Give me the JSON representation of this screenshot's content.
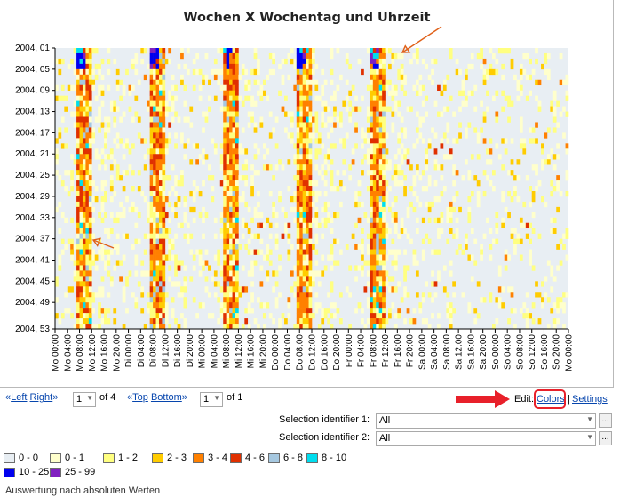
{
  "chart_data": {
    "type": "heatmap",
    "title": "Wochen X Wochentag und Uhrzeit",
    "ylabel": "",
    "xlabel": "",
    "y_tick_labels": [
      "2004, 01",
      "2004, 05",
      "2004, 09",
      "2004, 13",
      "2004, 17",
      "2004, 21",
      "2004, 25",
      "2004, 29",
      "2004, 33",
      "2004, 37",
      "2004, 41",
      "2004, 45",
      "2004, 49",
      "2004, 53"
    ],
    "x_tick_labels": [
      "Mo 00:00",
      "Mo 04:00",
      "Mo 08:00",
      "Mo 12:00",
      "Mo 16:00",
      "Mo 20:00",
      "Di 00:00",
      "Di 04:00",
      "Di 08:00",
      "Di 12:00",
      "Di 16:00",
      "Di 20:00",
      "Mi 00:00",
      "Mi 04:00",
      "Mi 08:00",
      "Mi 12:00",
      "Mi 16:00",
      "Mi 20:00",
      "Do 00:00",
      "Do 04:00",
      "Do 08:00",
      "Do 12:00",
      "Do 16:00",
      "Do 20:00",
      "Fr 00:00",
      "Fr 04:00",
      "Fr 08:00",
      "Fr 12:00",
      "Fr 16:00",
      "Fr 20:00",
      "Sa 00:00",
      "Sa 04:00",
      "Sa 08:00",
      "Sa 12:00",
      "Sa 16:00",
      "Sa 20:00",
      "So 00:00",
      "So 04:00",
      "So 08:00",
      "So 12:00",
      "So 16:00",
      "So 20:00",
      "Mo 00:00"
    ],
    "rows": 53,
    "columns": 168,
    "color_scale": [
      {
        "label": "0 - 0",
        "color": "#e8eef3"
      },
      {
        "label": "0 - 1",
        "color": "#ffffcc"
      },
      {
        "label": "1 - 2",
        "color": "#ffff80"
      },
      {
        "label": "2 - 3",
        "color": "#ffcc00"
      },
      {
        "label": "3 - 4",
        "color": "#ff8000"
      },
      {
        "label": "4 - 6",
        "color": "#e03000"
      },
      {
        "label": "6 - 8",
        "color": "#a6c8e0"
      },
      {
        "label": "8 - 10",
        "color": "#00ddee"
      },
      {
        "label": "10 - 25",
        "color": "#0000ee"
      },
      {
        "label": "25 - 99",
        "color": "#8020c0"
      }
    ],
    "high_activity_bands": [
      {
        "day": "Mo",
        "from_hour": 7,
        "to_hour": 11
      },
      {
        "day": "Di",
        "from_hour": 7,
        "to_hour": 11
      },
      {
        "day": "Mi",
        "from_hour": 7,
        "to_hour": 11
      },
      {
        "day": "Do",
        "from_hour": 7,
        "to_hour": 11
      },
      {
        "day": "Fr",
        "from_hour": 7,
        "to_hour": 11
      }
    ]
  },
  "pager_left": {
    "left_q": "«",
    "left": "Left",
    "right": "Right",
    "right_q": "»",
    "page": "1",
    "of": "of 4"
  },
  "pager_right": {
    "top_q": "«",
    "top": "Top",
    "bottom": "Bottom",
    "bottom_q": "»",
    "page": "1",
    "of": "of 1"
  },
  "edit": {
    "label": "Edit:",
    "colors": "Colors",
    "sep": "|",
    "settings": "Settings"
  },
  "selection1": {
    "label": "Selection identifier 1:",
    "value": "All",
    "button": "..."
  },
  "selection2": {
    "label": "Selection identifier 2:",
    "value": "All",
    "button": "..."
  },
  "footer": "Auswertung nach absoluten Werten"
}
